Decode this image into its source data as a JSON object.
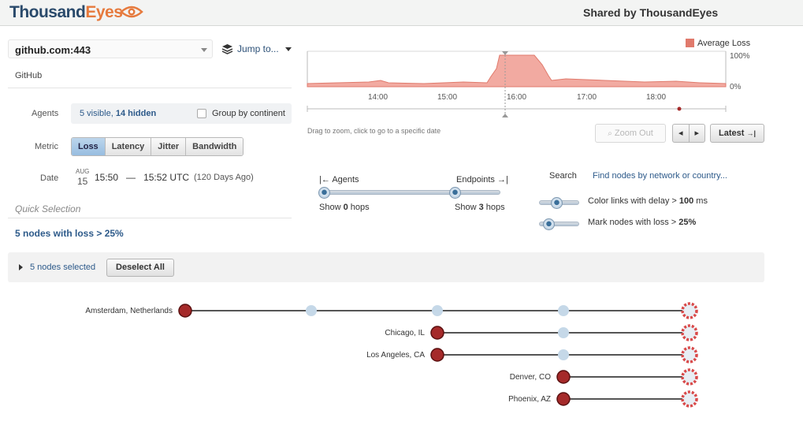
{
  "header": {
    "brand_part1": "Thousand",
    "brand_part2": "Eyes",
    "shared_by": "Shared by ThousandEyes"
  },
  "test": {
    "selected": "github.com:443",
    "jump_label": "Jump to...",
    "account": "GitHub"
  },
  "agents": {
    "label": "Agents",
    "visible": "5 visible,",
    "hidden": "14 hidden",
    "group_label": "Group by continent",
    "group_checked": false
  },
  "metric": {
    "label": "Metric",
    "options": [
      "Loss",
      "Latency",
      "Jitter",
      "Bandwidth"
    ],
    "selected": "Loss"
  },
  "date": {
    "label": "Date",
    "month": "AUG",
    "day": "15",
    "start": "15:50",
    "dash": "—",
    "end": "15:52 UTC",
    "ago": "(120 Days Ago)"
  },
  "quick": {
    "title": "Quick Selection",
    "link": "5 nodes with loss > 25%"
  },
  "selection": {
    "text": "5 nodes selected",
    "deselect": "Deselect All"
  },
  "timeline": {
    "legend": "Average Loss",
    "y_max": "100%",
    "y_min": "0%",
    "ticks": [
      "14:00",
      "15:00",
      "16:00",
      "17:00",
      "18:00"
    ],
    "hint": "Drag to zoom, click to go to a specific date",
    "zoom_out": "Zoom Out",
    "prev": "◂",
    "next": "▸",
    "latest": "Latest",
    "fill_color": "#f2aaa1",
    "stroke_color": "#e07a6c"
  },
  "hops": {
    "agents_label": "Agents",
    "endpoints_label": "Endpoints",
    "show_prefix": "Show",
    "left_hops": "0",
    "right_hops": "3",
    "hops_word": "hops"
  },
  "search": {
    "label": "Search",
    "link": "Find nodes by network or country..."
  },
  "thresholds": {
    "delay_prefix": "Color links with delay >",
    "delay_value": "100",
    "delay_unit": "ms",
    "loss_prefix": "Mark nodes with loss >",
    "loss_value": "25%"
  },
  "paths": {
    "agents": [
      "Amsterdam, Netherlands",
      "Chicago, IL",
      "Los Angeles, CA",
      "Denver, CO",
      "Phoenix, AZ"
    ],
    "node_colors": {
      "agent": "#a52a2a",
      "hop": "#c5d8e8",
      "target": "#d94a4a"
    }
  }
}
